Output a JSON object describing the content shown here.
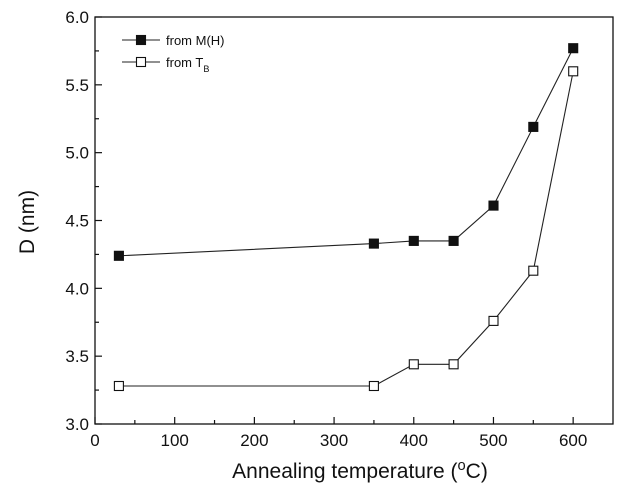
{
  "chart_data": {
    "type": "line",
    "xlabel": "Annealing temperature (°C)",
    "ylabel": "D (nm)",
    "xlim": [
      0,
      650
    ],
    "ylim": [
      3.0,
      6.0
    ],
    "xticks": [
      "0",
      "100",
      "200",
      "300",
      "400",
      "500",
      "600"
    ],
    "yticks": [
      "3.0",
      "3.5",
      "4.0",
      "4.5",
      "5.0",
      "5.5",
      "6.0"
    ],
    "grid": false,
    "legend_position": "top-left",
    "series": [
      {
        "name": "from M(H)",
        "marker": "filled-square",
        "color": "#111111",
        "x": [
          30,
          350,
          400,
          450,
          500,
          550,
          600
        ],
        "y": [
          4.24,
          4.33,
          4.35,
          4.35,
          4.61,
          5.19,
          5.77
        ]
      },
      {
        "name": "from T_B",
        "marker": "open-square",
        "color": "#111111",
        "x": [
          30,
          350,
          400,
          450,
          500,
          550,
          600
        ],
        "y": [
          3.28,
          3.28,
          3.44,
          3.44,
          3.76,
          4.13,
          5.6
        ]
      }
    ]
  }
}
